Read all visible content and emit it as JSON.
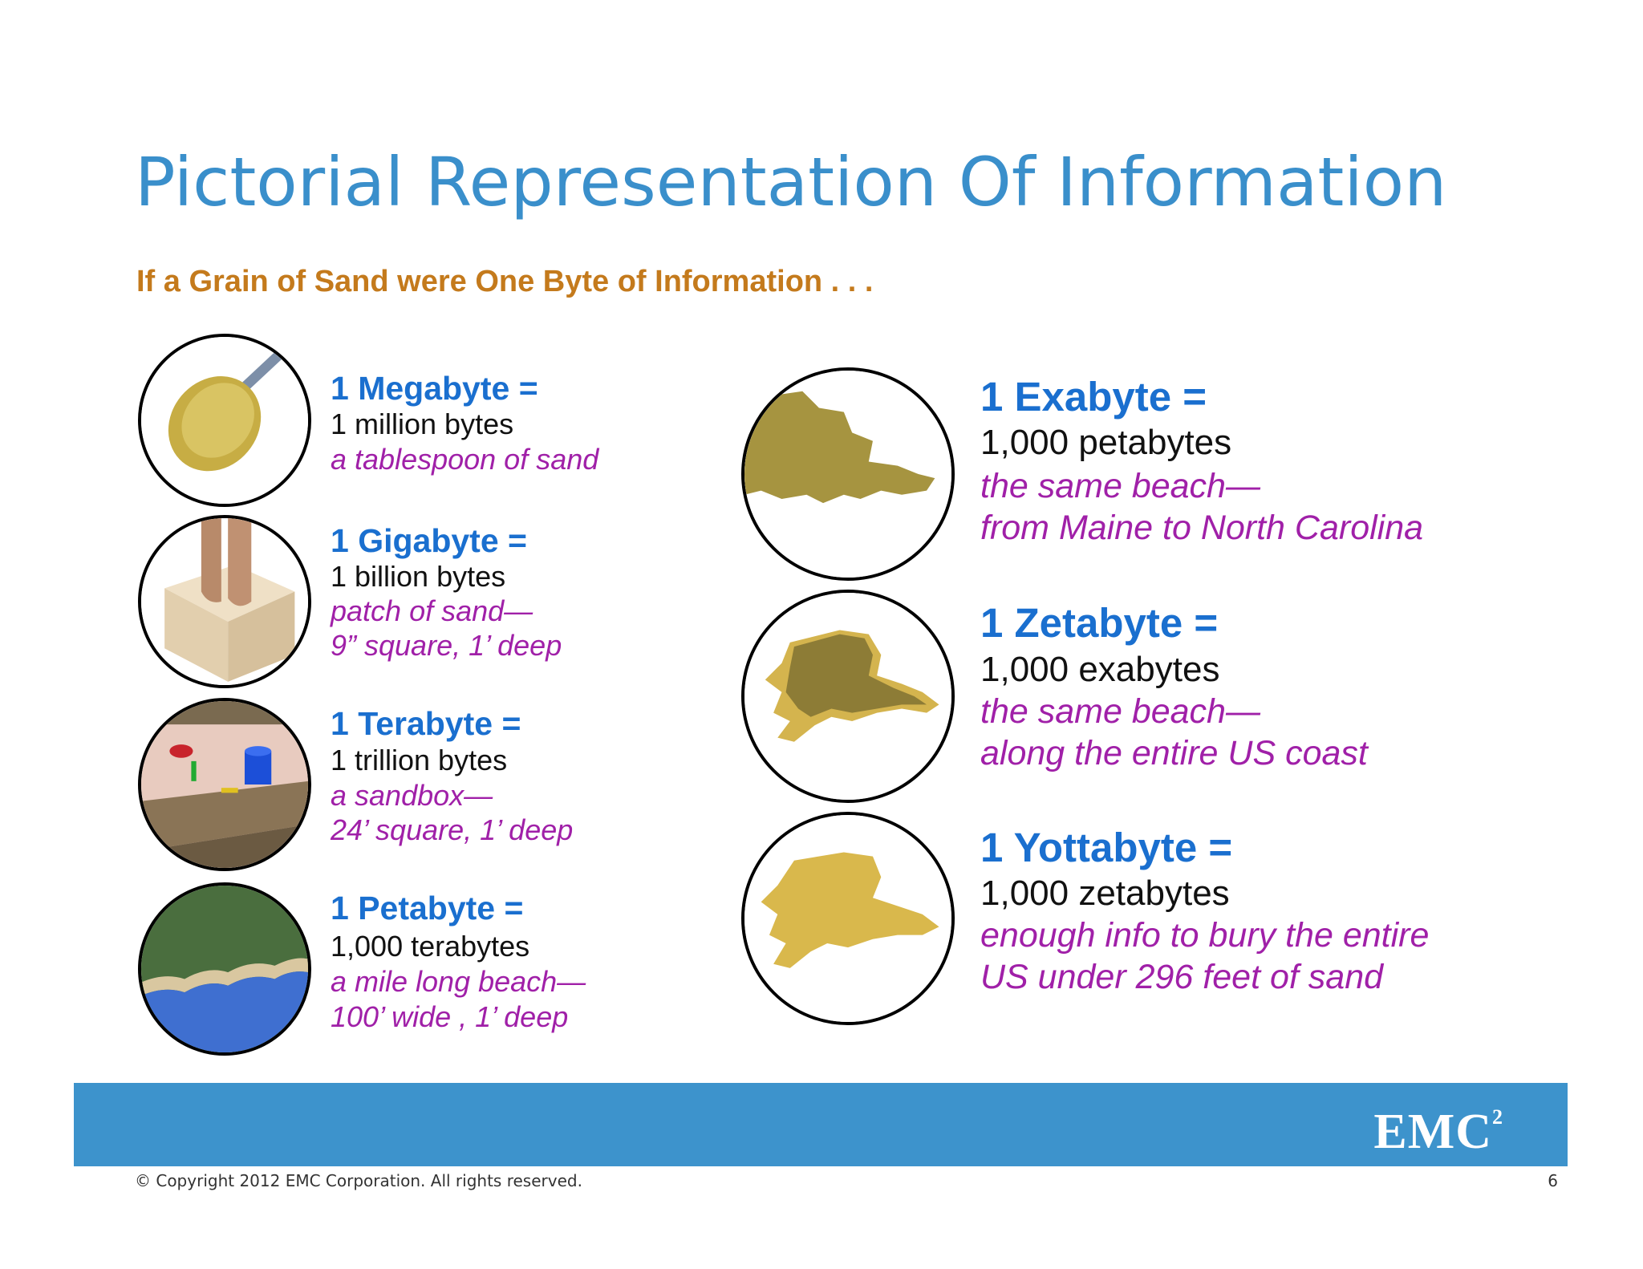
{
  "title": "Pictorial Representation Of Information",
  "subtitle": "If a Grain of Sand were One Byte of Information . . .",
  "left_items": [
    {
      "unit": "1 Megabyte =",
      "bytes": "1 million bytes",
      "desc": [
        "a tablespoon of sand"
      ],
      "icon": "spoon-icon"
    },
    {
      "unit": "1 Gigabyte =",
      "bytes": "1 billion bytes",
      "desc": [
        "patch of sand—",
        "9” square, 1’ deep"
      ],
      "icon": "sand-block-icon"
    },
    {
      "unit": "1 Terabyte =",
      "bytes": "1 trillion bytes",
      "desc": [
        "a sandbox—",
        "24’ square, 1’ deep"
      ],
      "icon": "sandbox-icon"
    },
    {
      "unit": "1 Petabyte =",
      "bytes": "1,000 terabytes",
      "desc": [
        "a mile long beach—",
        "100’ wide , 1’ deep"
      ],
      "icon": "beach-icon"
    }
  ],
  "right_items": [
    {
      "unit": "1 Exabyte =",
      "bytes": "1,000 petabytes",
      "desc": [
        "the same beach—",
        "from Maine to North Carolina"
      ],
      "icon": "east-coast-map-icon"
    },
    {
      "unit": "1 Zetabyte =",
      "bytes": "1,000 exabytes",
      "desc": [
        "the same beach—",
        "along the entire US coast"
      ],
      "icon": "us-coast-map-icon"
    },
    {
      "unit": "1 Yottabyte =",
      "bytes": "1,000 zetabytes",
      "desc": [
        "enough info to bury the entire",
        "US under 296 feet of sand"
      ],
      "icon": "us-map-icon"
    }
  ],
  "footer": {
    "logo": "EMC",
    "logo_sup": "2",
    "copyright": "© Copyright 2012 EMC Corporation. All rights reserved.",
    "page": "6"
  },
  "colors": {
    "title": "#3a8fcb",
    "subtitle": "#c47a1c",
    "unit": "#1a6fcf",
    "desc": "#a020a8",
    "footer_bar": "#3d93cc"
  }
}
